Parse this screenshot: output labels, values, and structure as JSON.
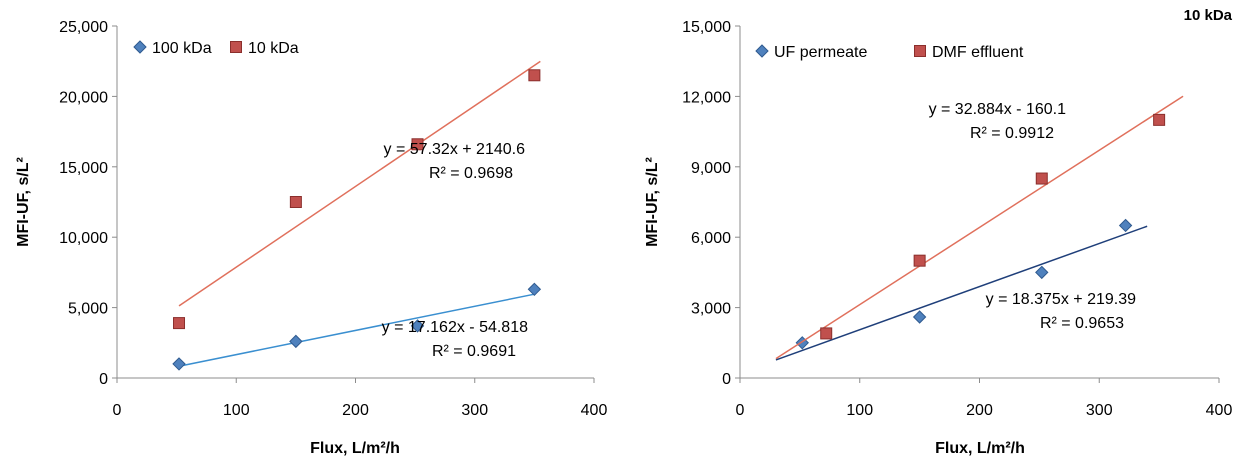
{
  "chart_data": [
    {
      "type": "scatter",
      "title": "",
      "xlabel": "Flux, L/m²/h",
      "ylabel": "MFI-UF, s/L²",
      "xlim": [
        0,
        400
      ],
      "ylim": [
        0,
        25000
      ],
      "xticks": [
        "0",
        "100",
        "200",
        "300",
        "400"
      ],
      "yticks": [
        "0",
        "5,000",
        "10,000",
        "15,000",
        "20,000",
        "25,000"
      ],
      "grid": false,
      "legend_position": "top-left",
      "series": [
        {
          "name": "100 kDa",
          "marker": "diamond",
          "color": "#4f81bd",
          "x": [
            52,
            150,
            252,
            350
          ],
          "y": [
            1000,
            2600,
            3700,
            6300
          ],
          "trend": {
            "slope": 17.162,
            "intercept": -54.818,
            "x_range": [
              52,
              350
            ],
            "color": "#3a8fd0"
          },
          "equation": "y = 17.162x - 54.818",
          "r2": "R² = 0.9691"
        },
        {
          "name": "10 kDa",
          "marker": "square",
          "color": "#c0504d",
          "x": [
            52,
            150,
            252,
            350
          ],
          "y": [
            3900,
            12500,
            16600,
            21500
          ],
          "trend": {
            "slope": 57.32,
            "intercept": 2140.6,
            "x_range": [
              52,
              355
            ],
            "color": "#e0705c"
          },
          "equation": "y = 57.32x + 2140.6",
          "r2": "R² = 0.9698"
        }
      ]
    },
    {
      "type": "scatter",
      "title": "10 kDa",
      "xlabel": "Flux, L/m²/h",
      "ylabel": "MFI-UF, s/L²",
      "xlim": [
        0,
        400
      ],
      "ylim": [
        0,
        15000
      ],
      "xticks": [
        "0",
        "100",
        "200",
        "300",
        "400"
      ],
      "yticks": [
        "0",
        "3,000",
        "6,000",
        "9,000",
        "12,000",
        "15,000"
      ],
      "grid": false,
      "legend_position": "top-left",
      "series": [
        {
          "name": "UF permeate",
          "marker": "diamond",
          "color": "#4f81bd",
          "x": [
            52,
            150,
            252,
            322
          ],
          "y": [
            1500,
            2600,
            4500,
            6500
          ],
          "trend": {
            "slope": 18.375,
            "intercept": 219.39,
            "x_range": [
              30,
              340
            ],
            "color": "#1f3f7a"
          },
          "equation": "y = 18.375x + 219.39",
          "r2": "R² = 0.9653"
        },
        {
          "name": "DMF effluent",
          "marker": "square",
          "color": "#c0504d",
          "x": [
            72,
            150,
            252,
            350
          ],
          "y": [
            1900,
            5000,
            8500,
            11000
          ],
          "trend": {
            "slope": 32.884,
            "intercept": -160.1,
            "x_range": [
              30,
              370
            ],
            "color": "#e0705c"
          },
          "equation": "y = 32.884x - 160.1",
          "r2": "R² = 0.9912"
        }
      ]
    }
  ]
}
